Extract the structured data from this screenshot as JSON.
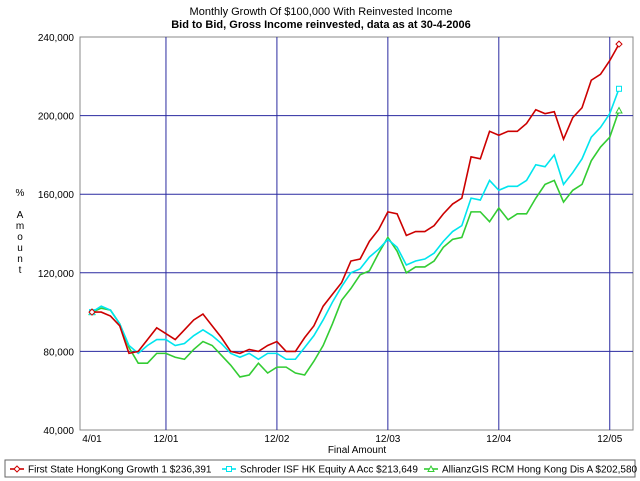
{
  "chart_data": {
    "type": "line",
    "title": "Monthly Growth Of $100,000 With Reinvested Income",
    "subtitle": "Bid to Bid, Gross Income reinvested, data as at 30-4-2006",
    "xlabel": "Final Amount",
    "ylabel": "% Amount",
    "ylim": [
      40000,
      240000
    ],
    "y_ticks": [
      40000,
      80000,
      120000,
      160000,
      200000,
      240000
    ],
    "y_tick_labels": [
      "40,000",
      "80,000",
      "120,000",
      "160,000",
      "200,000",
      "240,000"
    ],
    "x_tick_labels": [
      "4/01",
      "12/01",
      "12/02",
      "12/03",
      "12/04",
      "12/05"
    ],
    "x_tick_index": [
      0,
      8,
      20,
      32,
      44,
      56
    ],
    "grid": true,
    "legend_placement": "bottom",
    "series": [
      {
        "name": "First State HongKong Growth 1 $236,391",
        "color": "#cc0000",
        "marker": "diamond",
        "values": [
          100000,
          100000,
          98000,
          93000,
          79000,
          80000,
          86000,
          92000,
          89000,
          86000,
          91000,
          96000,
          99000,
          93000,
          87000,
          80000,
          79000,
          81000,
          80000,
          83000,
          85000,
          80000,
          80000,
          87000,
          93000,
          103000,
          109000,
          115000,
          126000,
          127000,
          136000,
          142000,
          151000,
          150000,
          139000,
          141000,
          141000,
          144000,
          150000,
          155000,
          158000,
          179000,
          178000,
          192000,
          190000,
          192000,
          192000,
          196000,
          203000,
          201000,
          202000,
          188000,
          199000,
          204000,
          218000,
          221000,
          228000,
          236391
        ]
      },
      {
        "name": "Schroder ISF HK Equity A Acc $213,649",
        "color": "#00e5ee",
        "marker": "square",
        "values": [
          100000,
          103000,
          101000,
          94000,
          83000,
          79000,
          83000,
          86000,
          86000,
          83000,
          84000,
          88000,
          91000,
          88000,
          84000,
          79000,
          77000,
          79000,
          76000,
          79000,
          79000,
          76000,
          76000,
          82000,
          88000,
          96000,
          105000,
          113000,
          120000,
          122000,
          128000,
          132000,
          137000,
          133000,
          124000,
          126000,
          127000,
          130000,
          136000,
          141000,
          144000,
          158000,
          157000,
          167000,
          162000,
          164000,
          164000,
          167000,
          175000,
          174000,
          180000,
          165000,
          171000,
          178000,
          189000,
          194000,
          201000,
          213649
        ]
      },
      {
        "name": "AllianzGIS RCM Hong Kong Dis A $202,580",
        "color": "#33cc33",
        "marker": "triangle",
        "values": [
          100000,
          102000,
          101000,
          94000,
          82000,
          74000,
          74000,
          79000,
          79000,
          77000,
          76000,
          81000,
          85000,
          83000,
          78000,
          73000,
          67000,
          68000,
          74000,
          69000,
          72000,
          72000,
          69000,
          68000,
          75000,
          83000,
          94000,
          106000,
          112000,
          119000,
          121000,
          130000,
          138000,
          131000,
          120000,
          123000,
          123000,
          126000,
          133000,
          137000,
          138000,
          151000,
          151000,
          146000,
          153000,
          147000,
          150000,
          150000,
          158000,
          165000,
          167000,
          156000,
          162000,
          165000,
          177000,
          184000,
          189000,
          202580
        ]
      }
    ]
  }
}
